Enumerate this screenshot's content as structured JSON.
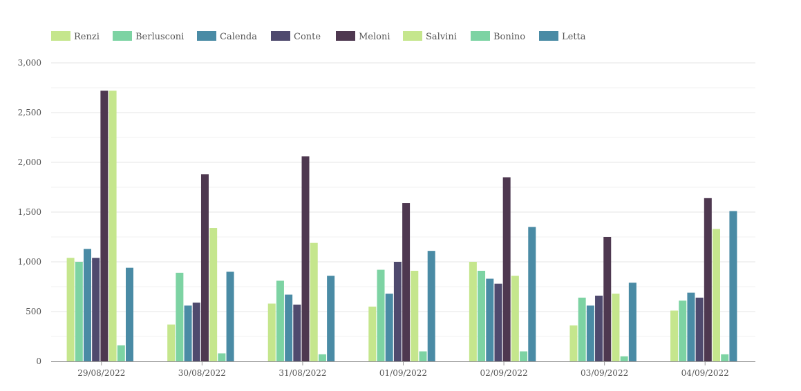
{
  "chart_data": {
    "type": "bar",
    "title": "",
    "xlabel": "",
    "ylabel": "",
    "ylim": [
      0,
      3000
    ],
    "yticks": [
      0,
      500,
      1000,
      1500,
      2000,
      2500,
      3000
    ],
    "ytick_labels": [
      "0",
      "500",
      "1,000",
      "1,500",
      "2,000",
      "2,500",
      "3,000"
    ],
    "grid": true,
    "legend_position": "top-left",
    "categories": [
      "29/08/2022",
      "30/08/2022",
      "31/08/2022",
      "01/09/2022",
      "02/09/2022",
      "03/09/2022",
      "04/09/2022"
    ],
    "series": [
      {
        "name": "Renzi",
        "color": "#c5e68d",
        "values": [
          1040,
          370,
          580,
          550,
          1000,
          360,
          510
        ]
      },
      {
        "name": "Berlusconi",
        "color": "#7dd3a3",
        "values": [
          1000,
          890,
          810,
          920,
          910,
          640,
          610
        ]
      },
      {
        "name": "Calenda",
        "color": "#4a8ba5",
        "values": [
          1130,
          560,
          670,
          680,
          830,
          560,
          690
        ]
      },
      {
        "name": "Conte",
        "color": "#4f4a6e",
        "values": [
          1040,
          590,
          570,
          1000,
          780,
          660,
          640
        ]
      },
      {
        "name": "Meloni",
        "color": "#4e3850",
        "values": [
          2720,
          1880,
          2060,
          1590,
          1850,
          1250,
          1640
        ]
      },
      {
        "name": "Salvini",
        "color": "#c5e68d",
        "values": [
          2720,
          1340,
          1190,
          910,
          860,
          680,
          1330
        ]
      },
      {
        "name": "Bonino",
        "color": "#7dd3a3",
        "values": [
          160,
          80,
          70,
          100,
          100,
          50,
          70
        ]
      },
      {
        "name": "Letta",
        "color": "#4a8ba5",
        "values": [
          940,
          900,
          860,
          1110,
          1350,
          790,
          1510
        ]
      }
    ]
  }
}
